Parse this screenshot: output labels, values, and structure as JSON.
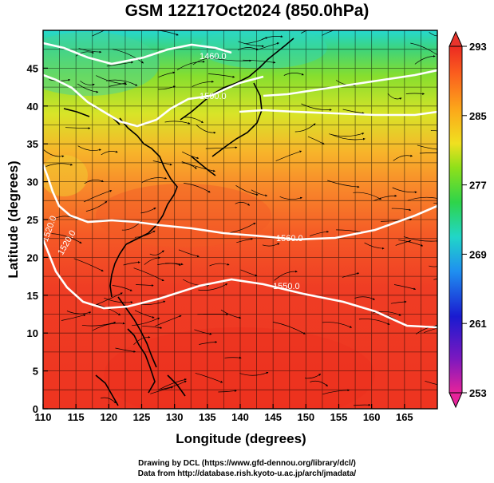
{
  "title": "GSM 12Z17Oct2024 (850.0hPa)",
  "footer": {
    "line1": "Drawing by DCL (https://www.gfd-dennou.org/library/dcl/)",
    "line2": "Data from http://database.rish.kyoto-u.ac.jp/arch/jmadata/"
  },
  "map": {
    "lon_range": [
      110,
      170
    ],
    "lat_range": [
      0,
      50
    ],
    "x_ticks": [
      "110",
      "115",
      "120",
      "125",
      "130",
      "135",
      "140",
      "145",
      "150",
      "155",
      "160",
      "165"
    ],
    "y_ticks": [
      "0",
      "5",
      "10",
      "15",
      "20",
      "25",
      "30",
      "35",
      "40",
      "45"
    ],
    "xlabel": "Longitude (degrees)",
    "ylabel": "Latitude  (degrees)",
    "contour_labels": [
      "1560.0",
      "1550.0",
      "1520.0",
      "1520.0",
      "1460.0",
      "1500.0"
    ]
  },
  "colorbar": {
    "tick_labels": [
      "293",
      "285",
      "277",
      "269",
      "261",
      "253"
    ],
    "range": [
      253,
      293
    ],
    "colors": [
      "#e6239a",
      "#7a18c0",
      "#1a1ad0",
      "#1f8ff0",
      "#21d6c8",
      "#2ed44a",
      "#8fe01a",
      "#f0e020",
      "#fca61a",
      "#fb5f1e",
      "#ec2a22"
    ]
  }
}
